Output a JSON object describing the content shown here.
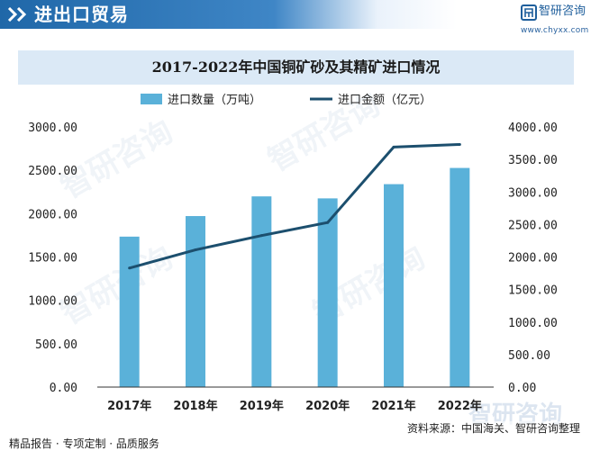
{
  "header": {
    "title": "进出口贸易",
    "brand_name": "智研咨询",
    "brand_url": "www.chyxx.com"
  },
  "chart_data": {
    "type": "bar",
    "title": "2017-2022年中国铜矿砂及其精矿进口情况",
    "categories": [
      "2017年",
      "2018年",
      "2019年",
      "2020年",
      "2021年",
      "2022年"
    ],
    "series": [
      {
        "name": "进口数量（万吨）",
        "type": "bar",
        "axis": "left",
        "color": "#5ab1d9",
        "values": [
          1735,
          1972,
          2199,
          2176,
          2340,
          2527
        ]
      },
      {
        "name": "进口金额（亿元）",
        "type": "line",
        "axis": "right",
        "color": "#1c4f6e",
        "values": [
          1830,
          2110,
          2330,
          2530,
          3690,
          3730
        ]
      }
    ],
    "y_left": {
      "ylim": [
        0,
        3000
      ],
      "ticks": [
        "0.00",
        "500.00",
        "1000.00",
        "1500.00",
        "2000.00",
        "2500.00",
        "3000.00"
      ]
    },
    "y_right": {
      "ylim": [
        0,
        4000
      ],
      "ticks": [
        "0.00",
        "500.00",
        "1000.00",
        "1500.00",
        "2000.00",
        "2500.00",
        "3000.00",
        "3500.00",
        "4000.00"
      ]
    },
    "grid": false,
    "legend_position": "top-center"
  },
  "footer": {
    "left": "精品报告 · 专项定制 · 品质服务",
    "source": "资料来源：中国海关、智研咨询整理"
  },
  "watermark": {
    "text": "智研咨询"
  }
}
